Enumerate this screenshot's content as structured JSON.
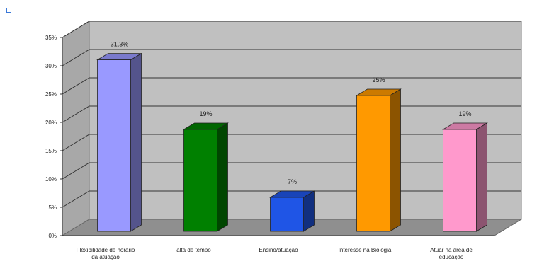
{
  "chart_data": {
    "type": "bar",
    "title": "",
    "xlabel": "",
    "ylabel": "",
    "categories": [
      [
        "Flexibilidade de horário",
        "da atuação"
      ],
      [
        "Falta de tempo"
      ],
      [
        "Ensino/atuação"
      ],
      [
        "Interesse na Biologia"
      ],
      [
        "Atuar na área de",
        "educação"
      ]
    ],
    "values": [
      31.3,
      19,
      7,
      25,
      19
    ],
    "value_labels": [
      "31,3%",
      "19%",
      "7%",
      "25%",
      "19%"
    ],
    "ylim": [
      0,
      35
    ],
    "yticks": [
      0,
      5,
      10,
      15,
      20,
      25,
      30,
      35
    ],
    "ytick_labels": [
      "0%",
      "5%",
      "10%",
      "15%",
      "20%",
      "25%",
      "30%",
      "35%"
    ],
    "colors": [
      "#9999ff",
      "#008000",
      "#1f55e6",
      "#ff9900",
      "#ff99cc"
    ],
    "grid": true,
    "legend": "none",
    "style": "3d-column"
  }
}
